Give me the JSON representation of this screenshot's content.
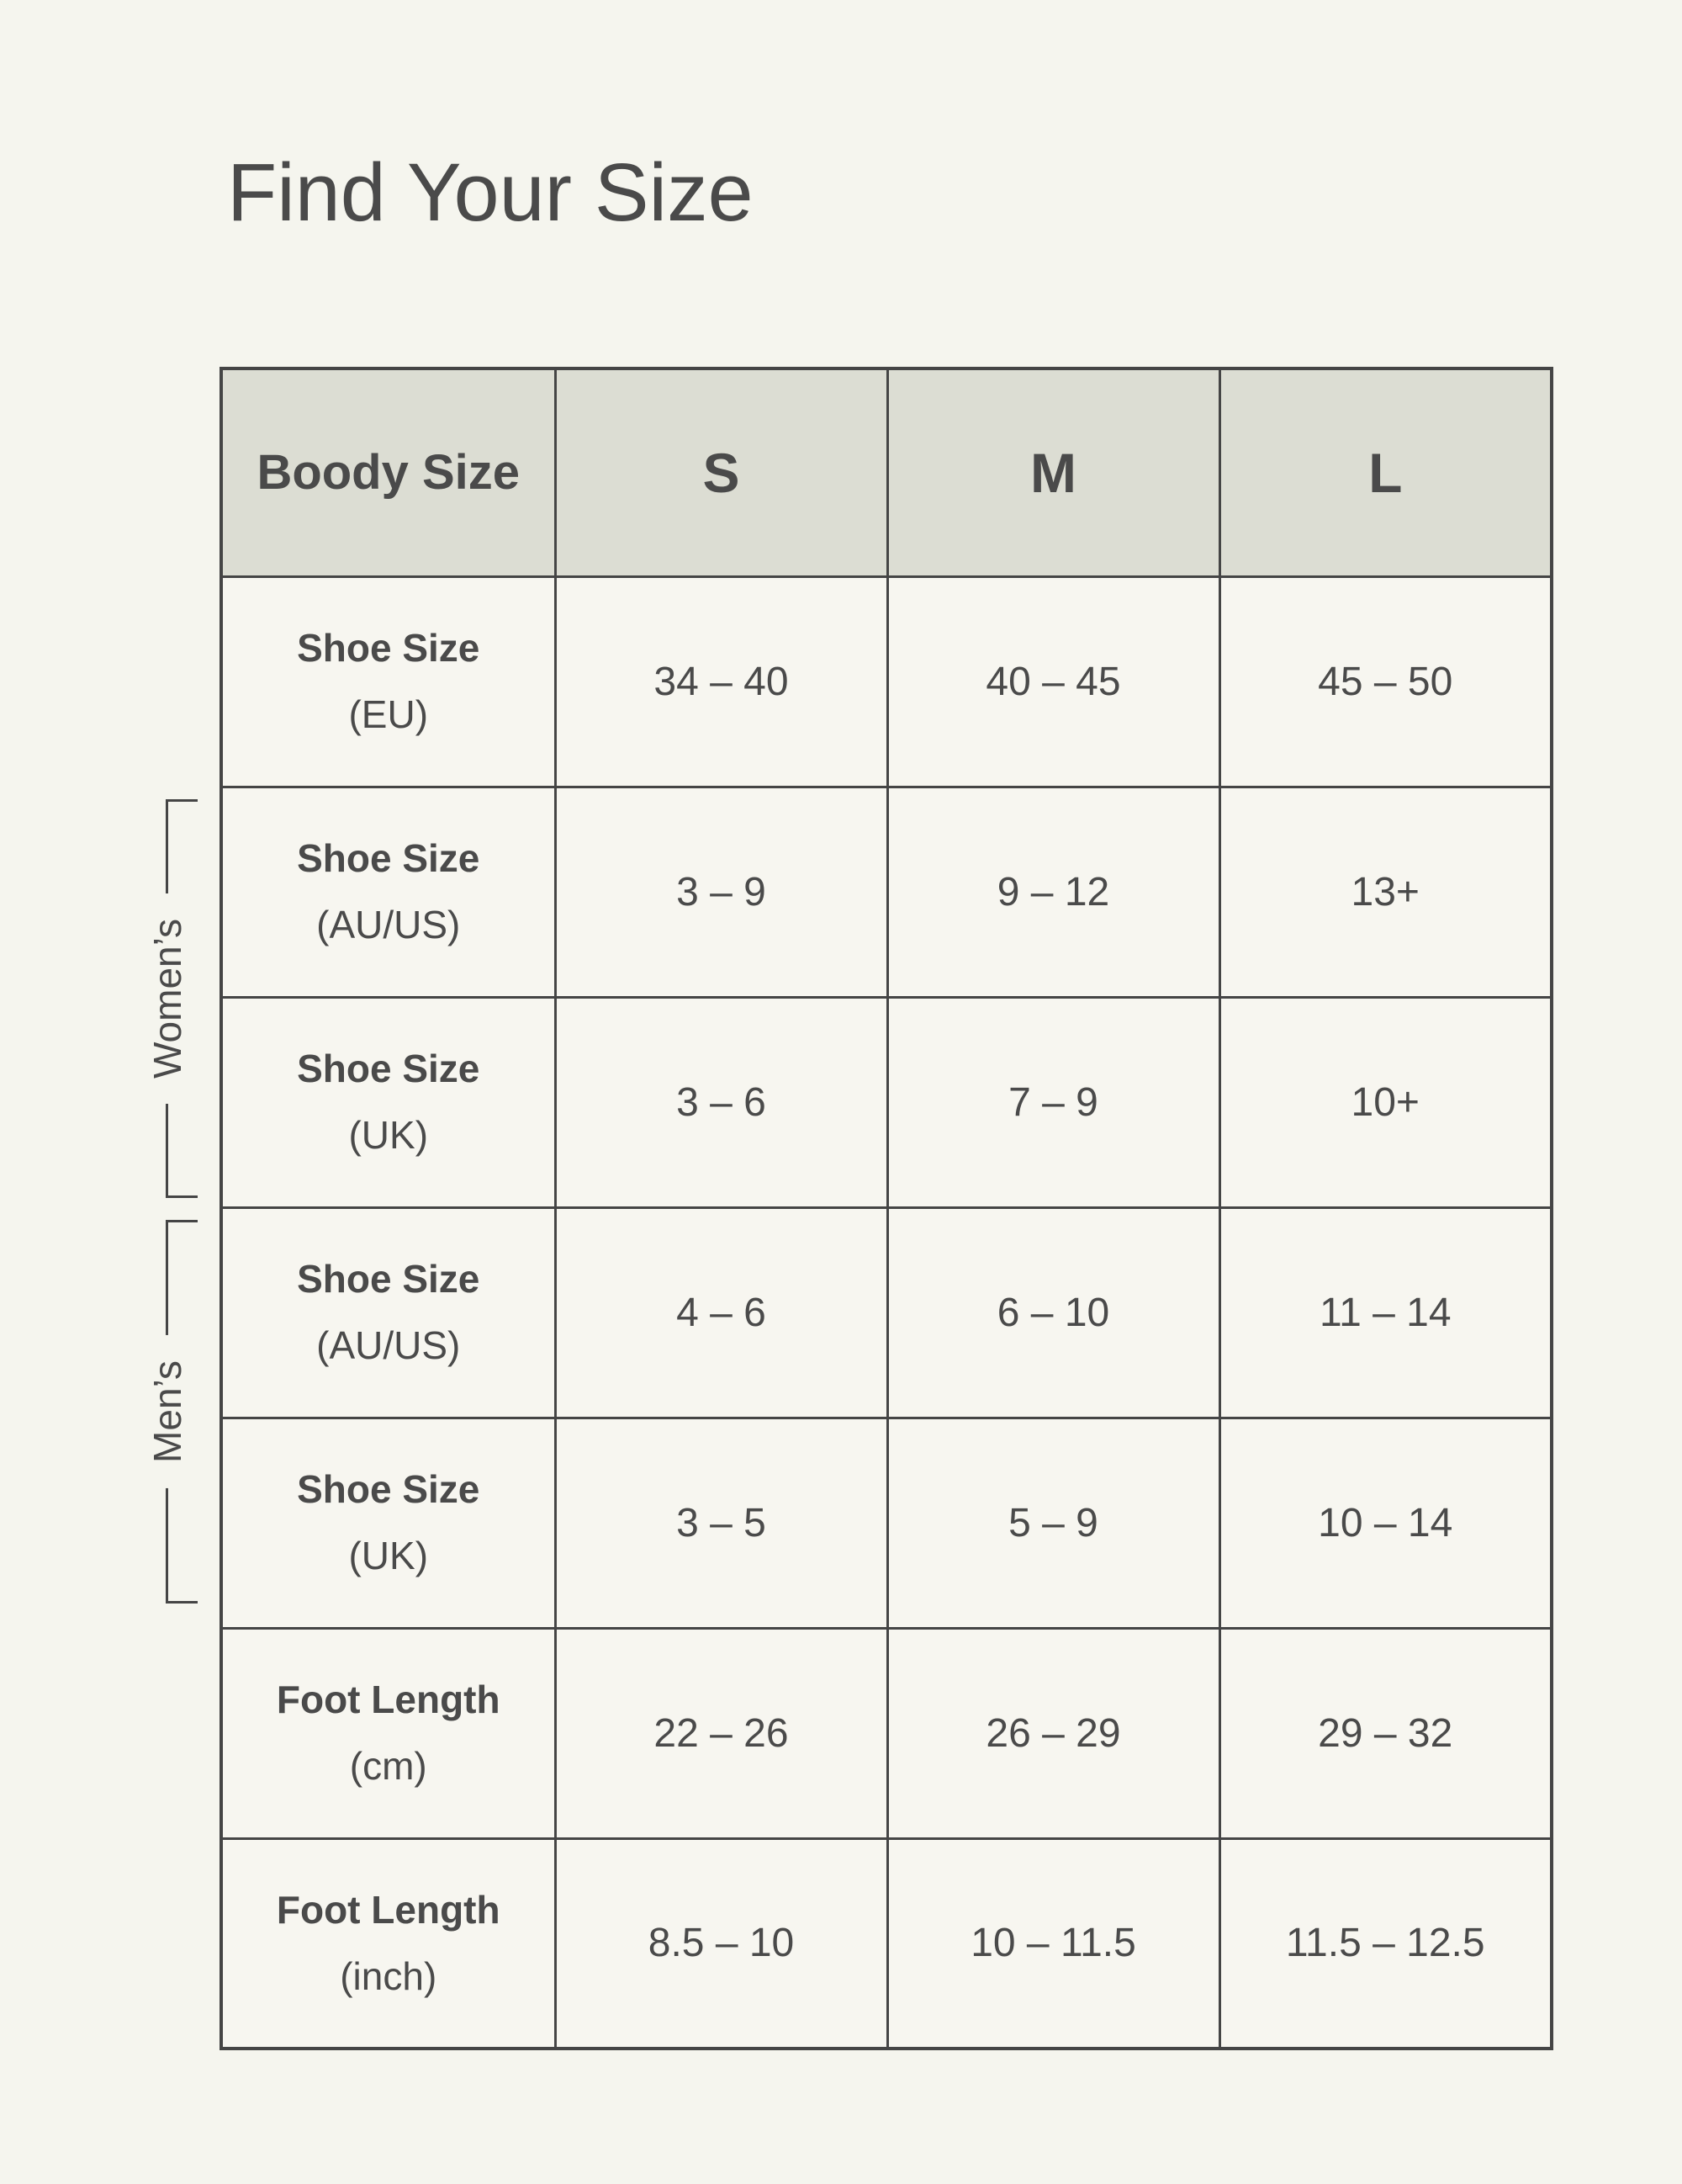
{
  "page": {
    "title": "Find Your Size"
  },
  "colors": {
    "background": "#f5f5ee",
    "cell_background": "#f7f6f0",
    "header_background": "#dcddd3",
    "border": "#454545",
    "text": "#4a4a4a"
  },
  "table": {
    "header": [
      "Boody Size",
      "S",
      "M",
      "L"
    ],
    "rows": [
      {
        "label": "Shoe Size",
        "sub": "(EU)",
        "values": [
          "34 – 40",
          "40 – 45",
          "45 – 50"
        ]
      },
      {
        "label": "Shoe Size",
        "sub": "(AU/US)",
        "values": [
          "3 – 9",
          "9 – 12",
          "13+"
        ]
      },
      {
        "label": "Shoe Size",
        "sub": "(UK)",
        "values": [
          "3 – 6",
          "7 – 9",
          "10+"
        ]
      },
      {
        "label": "Shoe Size",
        "sub": "(AU/US)",
        "values": [
          "4 – 6",
          "6 – 10",
          "11 – 14"
        ]
      },
      {
        "label": "Shoe Size",
        "sub": "(UK)",
        "values": [
          "3 – 5",
          "5 – 9",
          "10 – 14"
        ]
      },
      {
        "label": "Foot Length",
        "sub": "(cm)",
        "values": [
          "22 – 26",
          "26 – 29",
          "29 – 32"
        ]
      },
      {
        "label": "Foot Length",
        "sub": "(inch)",
        "values": [
          "8.5 – 10",
          "10 – 11.5",
          "11.5 – 12.5"
        ]
      }
    ],
    "side_labels": [
      {
        "label": "Women’s",
        "covers_rows": [
          "Shoe Size (AU/US)",
          "Shoe Size (UK)"
        ]
      },
      {
        "label": "Men’s",
        "covers_rows": [
          "Shoe Size (AU/US)",
          "Shoe Size (UK)"
        ]
      }
    ]
  },
  "chart_data": {
    "type": "table",
    "title": "Find Your Size",
    "row_header": "Boody Size",
    "columns": [
      "S",
      "M",
      "L"
    ],
    "rows": [
      {
        "group": "",
        "measure": "Shoe Size (EU)",
        "S": "34 – 40",
        "M": "40 – 45",
        "L": "45 – 50"
      },
      {
        "group": "Women's",
        "measure": "Shoe Size (AU/US)",
        "S": "3 – 9",
        "M": "9 – 12",
        "L": "13+"
      },
      {
        "group": "Women's",
        "measure": "Shoe Size (UK)",
        "S": "3 – 6",
        "M": "7 – 9",
        "L": "10+"
      },
      {
        "group": "Men's",
        "measure": "Shoe Size (AU/US)",
        "S": "4 – 6",
        "M": "6 – 10",
        "L": "11 – 14"
      },
      {
        "group": "Men's",
        "measure": "Shoe Size (UK)",
        "S": "3 – 5",
        "M": "5 – 9",
        "L": "10 – 14"
      },
      {
        "group": "",
        "measure": "Foot Length (cm)",
        "S": "22 – 26",
        "M": "26 – 29",
        "L": "29 – 32"
      },
      {
        "group": "",
        "measure": "Foot Length (inch)",
        "S": "8.5 – 10",
        "M": "10 – 11.5",
        "L": "11.5 – 12.5"
      }
    ],
    "layout": {
      "grid": true,
      "header_row_shaded": true,
      "group_brackets_position": "left"
    }
  }
}
